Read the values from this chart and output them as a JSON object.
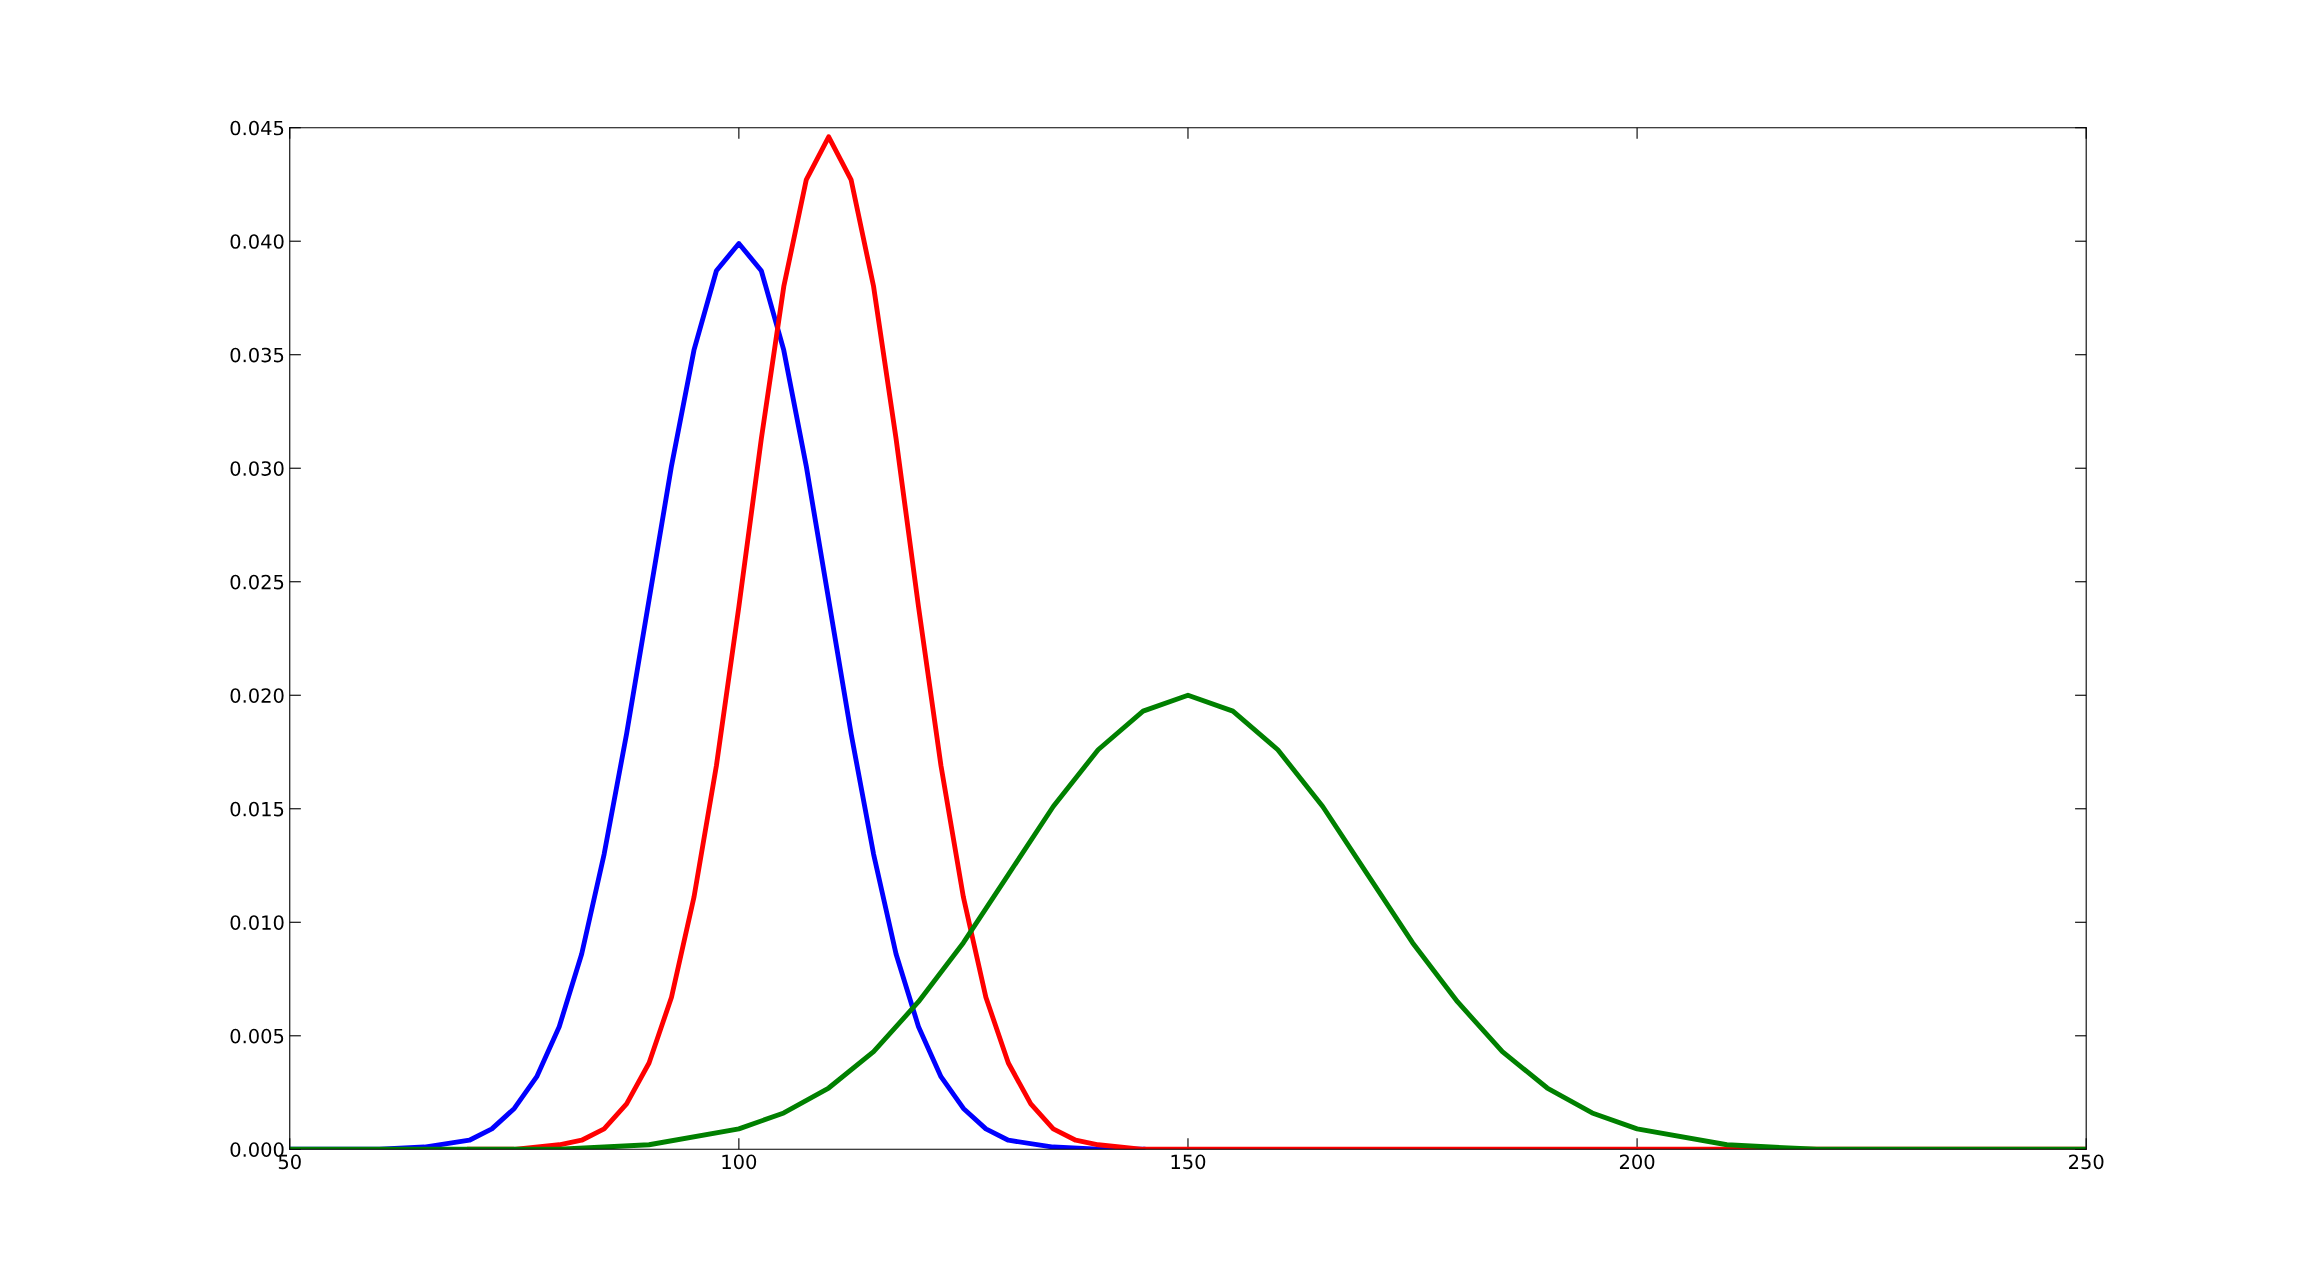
{
  "chart_data": {
    "type": "line",
    "xlim": [
      50,
      250
    ],
    "ylim": [
      0,
      0.045
    ],
    "xticks": [
      50,
      100,
      150,
      200,
      250
    ],
    "yticks": [
      {
        "value": 0,
        "label": "0.000"
      },
      {
        "value": 0.005,
        "label": "0.005"
      },
      {
        "value": 0.01,
        "label": "0.010"
      },
      {
        "value": 0.015,
        "label": "0.015"
      },
      {
        "value": 0.02,
        "label": "0.020"
      },
      {
        "value": 0.025,
        "label": "0.025"
      },
      {
        "value": 0.03,
        "label": "0.030"
      },
      {
        "value": 0.035,
        "label": "0.035"
      },
      {
        "value": 0.04,
        "label": "0.040"
      },
      {
        "value": 0.045,
        "label": "0.045"
      }
    ],
    "grid": false,
    "legend": false,
    "marker": "none",
    "line_style": "solid",
    "series": [
      {
        "color": "#0000ff",
        "x": [
          50,
          55,
          60,
          65,
          70,
          72.5,
          75,
          77.5,
          80,
          82.5,
          85,
          87.5,
          90,
          92.5,
          95,
          97.5,
          100,
          102.5,
          105,
          107.5,
          110,
          112.5,
          115,
          117.5,
          120,
          122.5,
          125,
          127.5,
          130,
          135,
          140,
          145
        ],
        "values": [
          0,
          0,
          0,
          0.0001,
          0.0004,
          0.0009,
          0.0018,
          0.0032,
          0.0054,
          0.0086,
          0.013,
          0.0183,
          0.0242,
          0.0301,
          0.0352,
          0.0387,
          0.0399,
          0.0387,
          0.0352,
          0.0301,
          0.0242,
          0.0183,
          0.013,
          0.0086,
          0.0054,
          0.0032,
          0.0018,
          0.0009,
          0.0004,
          0.0001,
          0,
          0
        ]
      },
      {
        "color": "#ff0000",
        "x": [
          70,
          75,
          80,
          82.5,
          85,
          87.5,
          90,
          92.5,
          95,
          97.5,
          100,
          102.5,
          105,
          107.5,
          110,
          112.5,
          115,
          117.5,
          120,
          122.5,
          125,
          127.5,
          130,
          132.5,
          135,
          137.5,
          140,
          145,
          150,
          200,
          250
        ],
        "values": [
          0,
          0,
          0.0002,
          0.0004,
          0.0009,
          0.002,
          0.0038,
          0.0067,
          0.0111,
          0.0169,
          0.0239,
          0.0313,
          0.038,
          0.0427,
          0.0446,
          0.0427,
          0.038,
          0.0313,
          0.0239,
          0.0169,
          0.0111,
          0.0067,
          0.0038,
          0.002,
          0.0009,
          0.0004,
          0.0002,
          0,
          0,
          0,
          0
        ]
      },
      {
        "color": "#008000",
        "x": [
          50,
          60,
          70,
          80,
          90,
          100,
          105,
          110,
          115,
          120,
          125,
          130,
          135,
          140,
          145,
          150,
          155,
          160,
          165,
          170,
          175,
          180,
          185,
          190,
          195,
          200,
          210,
          220,
          230,
          240,
          250
        ],
        "values": [
          0,
          0,
          0,
          0,
          0.0002,
          0.0009,
          0.0016,
          0.0027,
          0.0043,
          0.0065,
          0.0091,
          0.0121,
          0.0151,
          0.0176,
          0.0193,
          0.02,
          0.0193,
          0.0176,
          0.0151,
          0.0121,
          0.0091,
          0.0065,
          0.0043,
          0.0027,
          0.0016,
          0.0009,
          0.0002,
          0,
          0,
          0,
          0
        ]
      }
    ]
  }
}
